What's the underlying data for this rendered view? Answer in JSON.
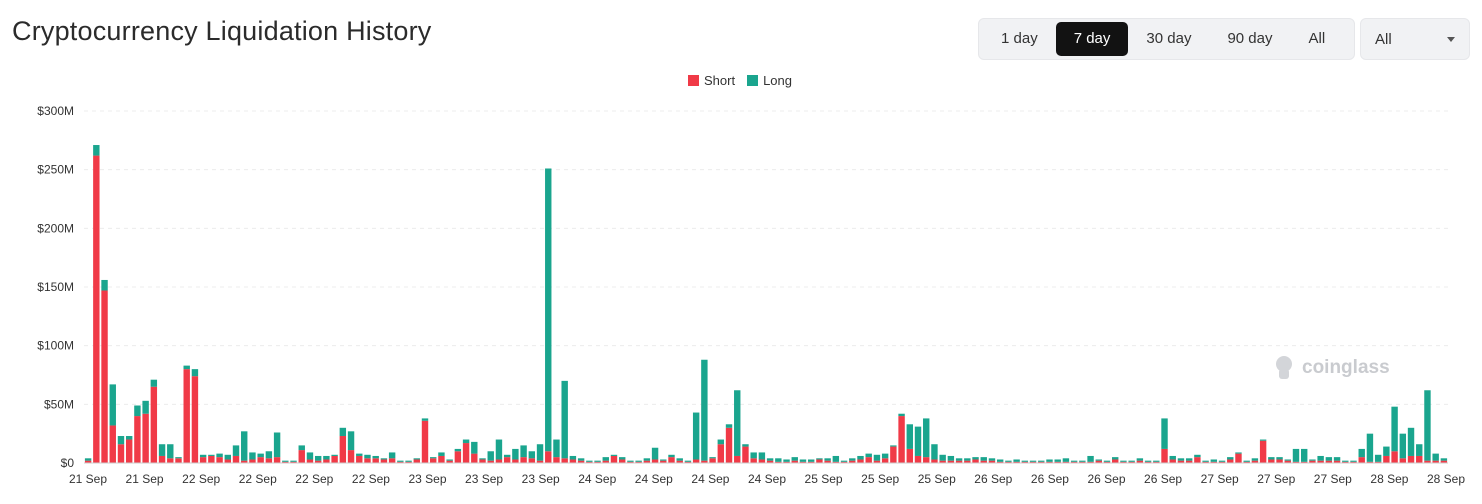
{
  "header": {
    "title": "Cryptocurrency Liquidation History"
  },
  "range_tabs": [
    {
      "label": "1 day",
      "active": false
    },
    {
      "label": "7 day",
      "active": true
    },
    {
      "label": "30 day",
      "active": false
    },
    {
      "label": "90 day",
      "active": false
    },
    {
      "label": "All",
      "active": false
    }
  ],
  "coin_select": {
    "value": "All"
  },
  "legend": [
    {
      "name": "Short",
      "color": "#f03a47"
    },
    {
      "name": "Long",
      "color": "#1aa58e"
    }
  ],
  "watermark": {
    "text": "coinglass"
  },
  "chart_data": {
    "type": "bar",
    "stacked": true,
    "ylim": [
      0,
      300
    ],
    "y_unit": "$M",
    "y_ticks": [
      "$0",
      "$50M",
      "$100M",
      "$150M",
      "$200M",
      "$250M",
      "$300M"
    ],
    "x_tick_labels": [
      "21 Sep",
      "21 Sep",
      "22 Sep",
      "22 Sep",
      "22 Sep",
      "22 Sep",
      "23 Sep",
      "23 Sep",
      "23 Sep",
      "24 Sep",
      "24 Sep",
      "24 Sep",
      "24 Sep",
      "25 Sep",
      "25 Sep",
      "25 Sep",
      "26 Sep",
      "26 Sep",
      "26 Sep",
      "26 Sep",
      "27 Sep",
      "27 Sep",
      "27 Sep",
      "28 Sep",
      "28 Sep"
    ],
    "grid": true,
    "legend_position": "top-center",
    "series": [
      {
        "name": "Short",
        "color": "#f03a47",
        "values": [
          2,
          262,
          147,
          32,
          16,
          20,
          40,
          42,
          65,
          6,
          4,
          4,
          80,
          74,
          5,
          6,
          5,
          3,
          6,
          2,
          3,
          5,
          4,
          5,
          1,
          1,
          11,
          3,
          2,
          3,
          6,
          23,
          11,
          6,
          4,
          4,
          3,
          4,
          1,
          1,
          3,
          36,
          4,
          6,
          2,
          10,
          17,
          8,
          3,
          2,
          3,
          5,
          3,
          5,
          4,
          2,
          10,
          5,
          4,
          3,
          2,
          1,
          1,
          2,
          6,
          3,
          1,
          1,
          2,
          3,
          2,
          5,
          2,
          1,
          3,
          2,
          4,
          16,
          30,
          6,
          14,
          4,
          3,
          2,
          1,
          1,
          2,
          1,
          1,
          3,
          2,
          1,
          1,
          2,
          3,
          5,
          2,
          4,
          14,
          40,
          12,
          6,
          5,
          3,
          2,
          2,
          2,
          2,
          3,
          2,
          2,
          1,
          1,
          1,
          1,
          1,
          1,
          1,
          1,
          1,
          1,
          1,
          1,
          2,
          1,
          3,
          1,
          1,
          2,
          1,
          1,
          12,
          3,
          2,
          2,
          5,
          1,
          1,
          1,
          3,
          8,
          1,
          2,
          19,
          3,
          3,
          2,
          1,
          1,
          2,
          2,
          2,
          2,
          1,
          1,
          5,
          1,
          1,
          6,
          10,
          4,
          6,
          6,
          2,
          2,
          2
        ]
      },
      {
        "name": "Long",
        "color": "#1aa58e",
        "values": [
          2,
          9,
          9,
          35,
          7,
          3,
          9,
          11,
          6,
          10,
          12,
          1,
          3,
          6,
          2,
          1,
          3,
          4,
          9,
          25,
          6,
          3,
          6,
          21,
          1,
          1,
          4,
          6,
          4,
          3,
          1,
          7,
          16,
          2,
          3,
          2,
          1,
          5,
          1,
          1,
          1,
          2,
          1,
          3,
          1,
          2,
          3,
          10,
          1,
          8,
          17,
          2,
          9,
          10,
          6,
          14,
          241,
          15,
          66,
          3,
          2,
          1,
          1,
          3,
          1,
          2,
          1,
          1,
          2,
          10,
          1,
          2,
          2,
          1,
          40,
          86,
          1,
          4,
          3,
          56,
          2,
          5,
          6,
          2,
          3,
          2,
          3,
          2,
          2,
          1,
          2,
          5,
          1,
          2,
          3,
          3,
          5,
          4,
          1,
          2,
          21,
          25,
          33,
          13,
          5,
          4,
          2,
          2,
          2,
          3,
          2,
          2,
          1,
          2,
          1,
          1,
          1,
          2,
          2,
          3,
          1,
          1,
          5,
          1,
          1,
          2,
          1,
          1,
          2,
          1,
          1,
          26,
          3,
          2,
          2,
          2,
          1,
          2,
          1,
          2,
          1,
          1,
          2,
          1,
          2,
          2,
          1,
          11,
          11,
          1,
          4,
          3,
          3,
          1,
          1,
          7,
          24,
          6,
          8,
          38,
          21,
          24,
          10,
          60,
          6,
          2
        ]
      }
    ]
  }
}
